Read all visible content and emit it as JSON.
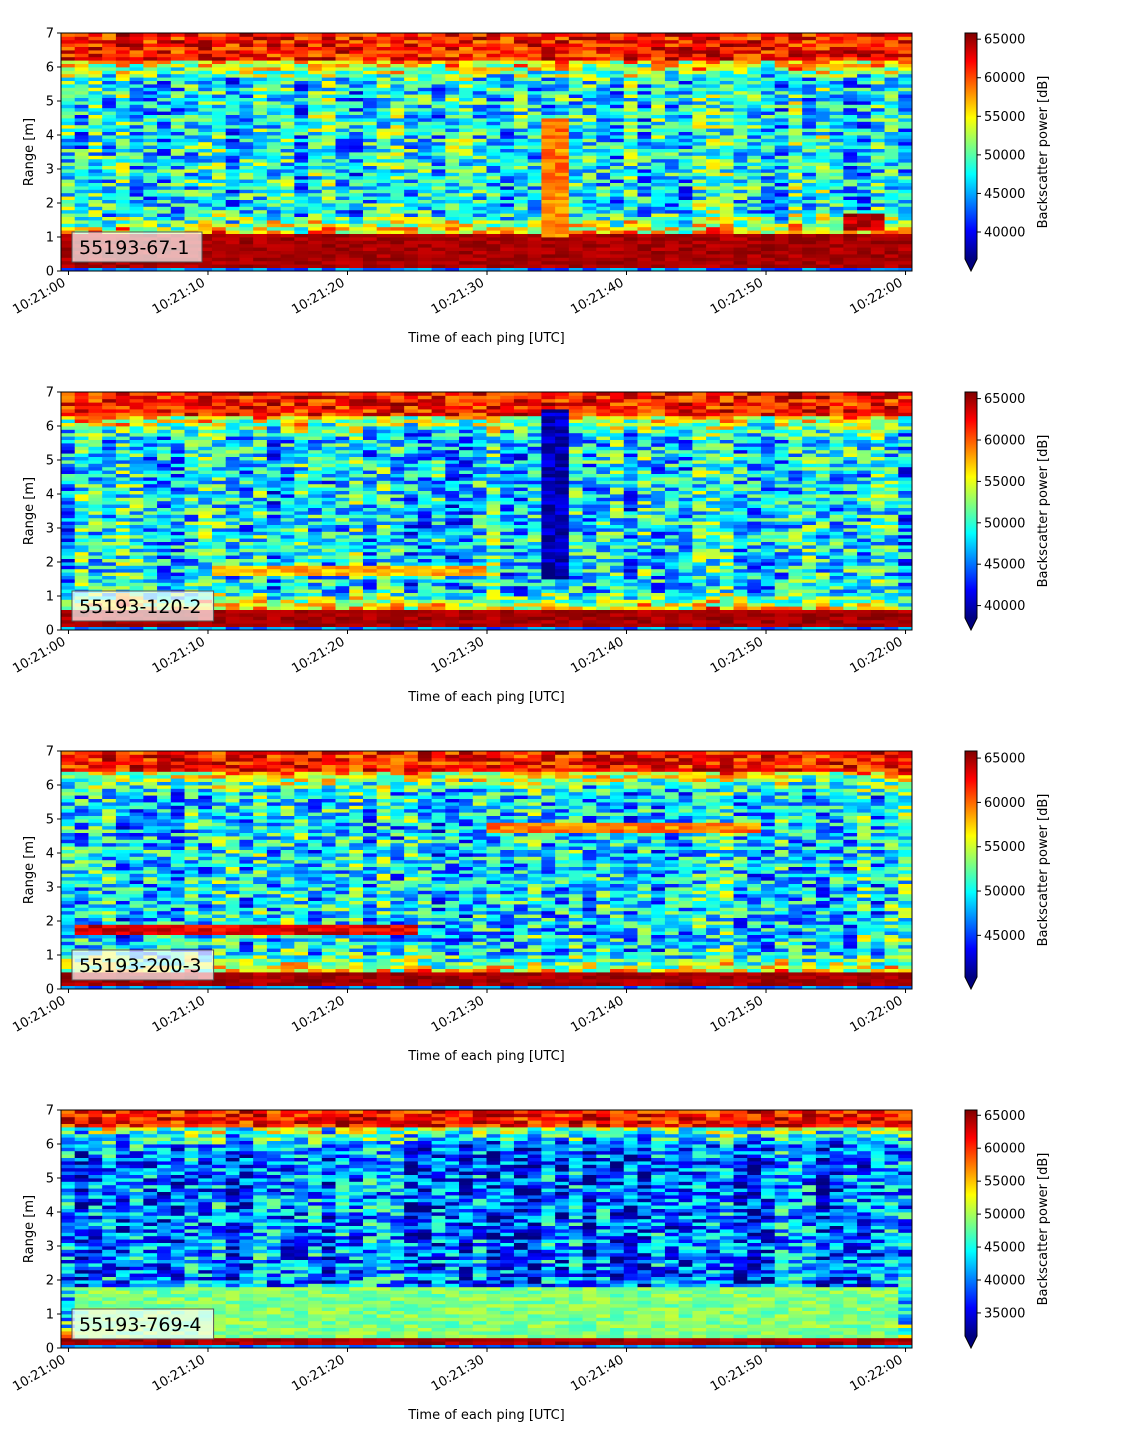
{
  "figure": {
    "colormap": "jet",
    "colormap_stops": [
      "#00007f",
      "#0000ff",
      "#007fff",
      "#00ffff",
      "#7fff7f",
      "#ffff00",
      "#ff7f00",
      "#ff0000",
      "#7f0000"
    ],
    "label_box_color": "#ffffff",
    "label_box_edge": "#555555"
  },
  "chart_data": [
    {
      "type": "heatmap",
      "label": "55193-67-1",
      "xlabel": "Time of each ping [UTC]",
      "ylabel": "Range [m]",
      "colorbar_label": "Backscatter power [dB]",
      "x_range": [
        "10:21:00",
        "10:22:00"
      ],
      "xticks": [
        "10:21:00",
        "10:21:10",
        "10:21:20",
        "10:21:30",
        "10:21:40",
        "10:21:50",
        "10:22:00"
      ],
      "ylim": [
        0,
        7
      ],
      "yticks": [
        0,
        1,
        2,
        3,
        4,
        5,
        6,
        7
      ],
      "clim": [
        36500,
        65800
      ],
      "colorbar_ticks": [
        40000,
        45000,
        50000,
        55000,
        60000,
        65000
      ],
      "colorbar_extend": "min",
      "pattern": {
        "bottom_band_max_m": 1.1,
        "top_band_min_m": 6.2,
        "mid_level": 0.38,
        "features": [
          {
            "t": [
              33.5,
              35.5
            ],
            "r": [
              1.0,
              4.5
            ],
            "level": 0.75
          },
          {
            "t": [
              56,
              59
            ],
            "r": [
              1.2,
              1.7
            ],
            "level": 0.95
          }
        ]
      }
    },
    {
      "type": "heatmap",
      "label": "55193-120-2",
      "xlabel": "Time of each ping [UTC]",
      "ylabel": "Range [m]",
      "colorbar_label": "Backscatter power [dB]",
      "x_range": [
        "10:21:00",
        "10:22:00"
      ],
      "xticks": [
        "10:21:00",
        "10:21:10",
        "10:21:20",
        "10:21:30",
        "10:21:40",
        "10:21:50",
        "10:22:00"
      ],
      "ylim": [
        0,
        7
      ],
      "yticks": [
        0,
        1,
        2,
        3,
        4,
        5,
        6,
        7
      ],
      "clim": [
        38500,
        65800
      ],
      "colorbar_ticks": [
        40000,
        45000,
        50000,
        55000,
        60000,
        65000
      ],
      "colorbar_extend": "min",
      "pattern": {
        "bottom_band_max_m": 0.6,
        "top_band_min_m": 6.3,
        "mid_level": 0.35,
        "features": [
          {
            "t": [
              34,
              36
            ],
            "r": [
              1.5,
              6.5
            ],
            "level": 0.05
          },
          {
            "t": [
              10,
              30
            ],
            "r": [
              1.6,
              1.9
            ],
            "level": 0.7
          }
        ]
      }
    },
    {
      "type": "heatmap",
      "label": "55193-200-3",
      "xlabel": "Time of each ping [UTC]",
      "ylabel": "Range [m]",
      "colorbar_label": "Backscatter power [dB]",
      "x_range": [
        "10:21:00",
        "10:22:00"
      ],
      "xticks": [
        "10:21:00",
        "10:21:10",
        "10:21:20",
        "10:21:30",
        "10:21:40",
        "10:21:50",
        "10:22:00"
      ],
      "ylim": [
        0,
        7
      ],
      "yticks": [
        0,
        1,
        2,
        3,
        4,
        5,
        6,
        7
      ],
      "clim": [
        40300,
        65800
      ],
      "colorbar_ticks": [
        45000,
        50000,
        55000,
        60000,
        65000
      ],
      "colorbar_extend": "min",
      "pattern": {
        "bottom_band_max_m": 0.5,
        "top_band_min_m": 6.4,
        "mid_level": 0.35,
        "features": [
          {
            "t": [
              0,
              25
            ],
            "r": [
              1.55,
              1.85
            ],
            "level": 0.9
          },
          {
            "t": [
              30,
              50
            ],
            "r": [
              4.6,
              4.9
            ],
            "level": 0.75
          }
        ]
      }
    },
    {
      "type": "heatmap",
      "label": "55193-769-4",
      "xlabel": "Time of each ping [UTC]",
      "ylabel": "Range [m]",
      "colorbar_label": "Backscatter power [dB]",
      "x_range": [
        "10:21:00",
        "10:22:00"
      ],
      "xticks": [
        "10:21:00",
        "10:21:10",
        "10:21:20",
        "10:21:30",
        "10:21:40",
        "10:21:50",
        "10:22:00"
      ],
      "ylim": [
        0,
        7
      ],
      "yticks": [
        0,
        1,
        2,
        3,
        4,
        5,
        6,
        7
      ],
      "clim": [
        31500,
        65800
      ],
      "colorbar_ticks": [
        35000,
        40000,
        45000,
        50000,
        55000,
        60000,
        65000
      ],
      "colorbar_extend": "min",
      "pattern": {
        "bottom_band_max_m": 0.35,
        "top_band_min_m": 6.5,
        "mid_level": 0.22,
        "features": [
          {
            "t": [
              0,
              60
            ],
            "r": [
              0.35,
              1.8
            ],
            "level": 0.5
          }
        ]
      }
    }
  ]
}
